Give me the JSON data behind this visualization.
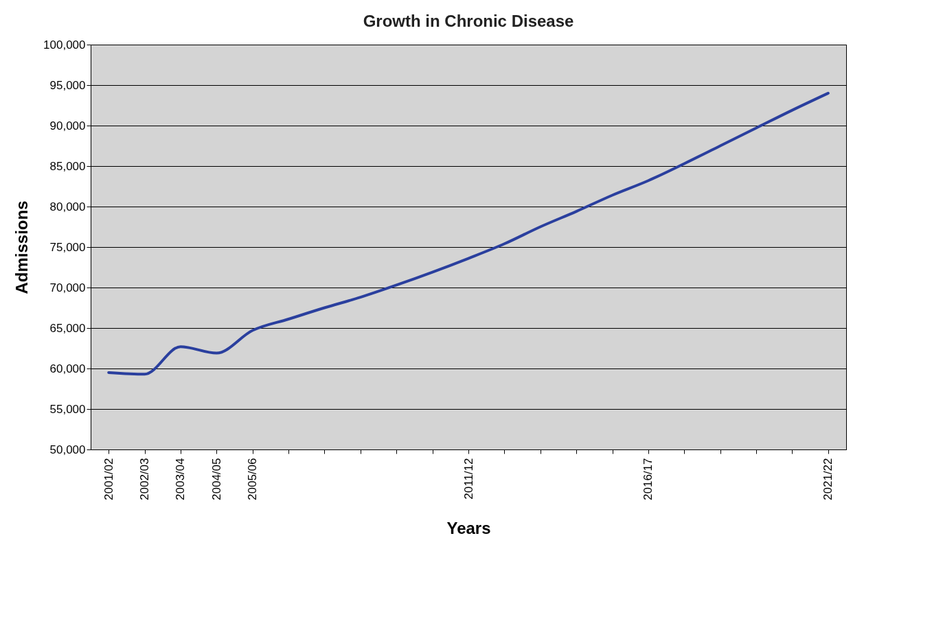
{
  "chart_data": {
    "type": "line",
    "title": "Growth in Chronic Disease",
    "xlabel": "Years",
    "ylabel": "Admissions",
    "categories": [
      "2001/02",
      "2002/03",
      "2003/04",
      "2004/05",
      "2005/06",
      null,
      null,
      null,
      null,
      null,
      "2011/12",
      null,
      null,
      null,
      null,
      "2016/17",
      null,
      null,
      null,
      null,
      "2021/22"
    ],
    "series": [
      {
        "color": "#2a3f9e",
        "values": [
          59500,
          59300,
          62700,
          61900,
          64700,
          66100,
          67500,
          68800,
          70300,
          71900,
          73600,
          75400,
          77500,
          79400,
          81400,
          83200,
          85300,
          87500,
          89700,
          91900,
          94000
        ]
      }
    ],
    "ylim": [
      50000,
      100000
    ],
    "yticks": [
      {
        "value": 50000,
        "label": "50,000"
      },
      {
        "value": 55000,
        "label": "55,000"
      },
      {
        "value": 60000,
        "label": "60,000"
      },
      {
        "value": 65000,
        "label": "65,000"
      },
      {
        "value": 70000,
        "label": "70,000"
      },
      {
        "value": 75000,
        "label": "75,000"
      },
      {
        "value": 80000,
        "label": "80,000"
      },
      {
        "value": 85000,
        "label": "85,000"
      },
      {
        "value": 90000,
        "label": "90,000"
      },
      {
        "value": 95000,
        "label": "95,000"
      },
      {
        "value": 100000,
        "label": "100,000"
      }
    ],
    "grid": "y",
    "marker": "none",
    "line_style": "solid"
  }
}
